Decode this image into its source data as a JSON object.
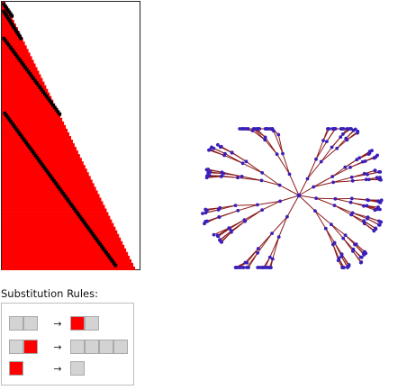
{
  "rules_title": "Substitution Rules:",
  "arrow_glyph": "→",
  "colors": {
    "red": "#ff0000",
    "gray": "#d3d3d3",
    "black": "#000000",
    "node": "#3a1fb8",
    "edge": "#8b1a1a"
  },
  "rules": [
    {
      "lhs": [
        "gray",
        "gray"
      ],
      "rhs": [
        "red",
        "gray"
      ]
    },
    {
      "lhs": [
        "gray",
        "red"
      ],
      "rhs": [
        "gray",
        "gray",
        "gray",
        "gray"
      ]
    },
    {
      "lhs": [
        "red"
      ],
      "rhs": [
        "gray"
      ]
    }
  ]
}
